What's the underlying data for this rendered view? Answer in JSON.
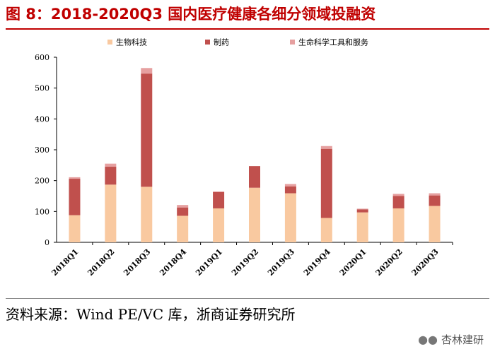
{
  "title": "图 8：2018-2020Q3 国内医疗健康各细分领域投融资",
  "source": "资料来源：Wind PE/VC 库，浙商证券研究所",
  "watermark": "杏林建研",
  "colors": {
    "title": "#c00000",
    "series": [
      "#f9c9a0",
      "#c0504d",
      "#e6a0a0"
    ]
  },
  "chart_data": {
    "type": "bar",
    "stacked": true,
    "title": "",
    "xlabel": "",
    "ylabel": "",
    "ylim": [
      0,
      600
    ],
    "yticks": [
      0,
      100,
      200,
      300,
      400,
      500,
      600
    ],
    "legend_position": "top",
    "categories": [
      "2018Q1",
      "2018Q2",
      "2018Q3",
      "2018Q4",
      "2019Q1",
      "2019Q2",
      "2019Q3",
      "2019Q4",
      "2020Q1",
      "2020Q2",
      "2020Q3"
    ],
    "series": [
      {
        "name": "生物科技",
        "values": [
          88,
          187,
          180,
          86,
          110,
          177,
          159,
          79,
          97,
          110,
          118
        ]
      },
      {
        "name": "制药",
        "values": [
          118,
          58,
          367,
          27,
          53,
          70,
          22,
          224,
          10,
          40,
          34
        ]
      },
      {
        "name": "生命科学工具和服务",
        "values": [
          5,
          10,
          18,
          8,
          2,
          0,
          8,
          9,
          2,
          7,
          7
        ]
      }
    ]
  }
}
